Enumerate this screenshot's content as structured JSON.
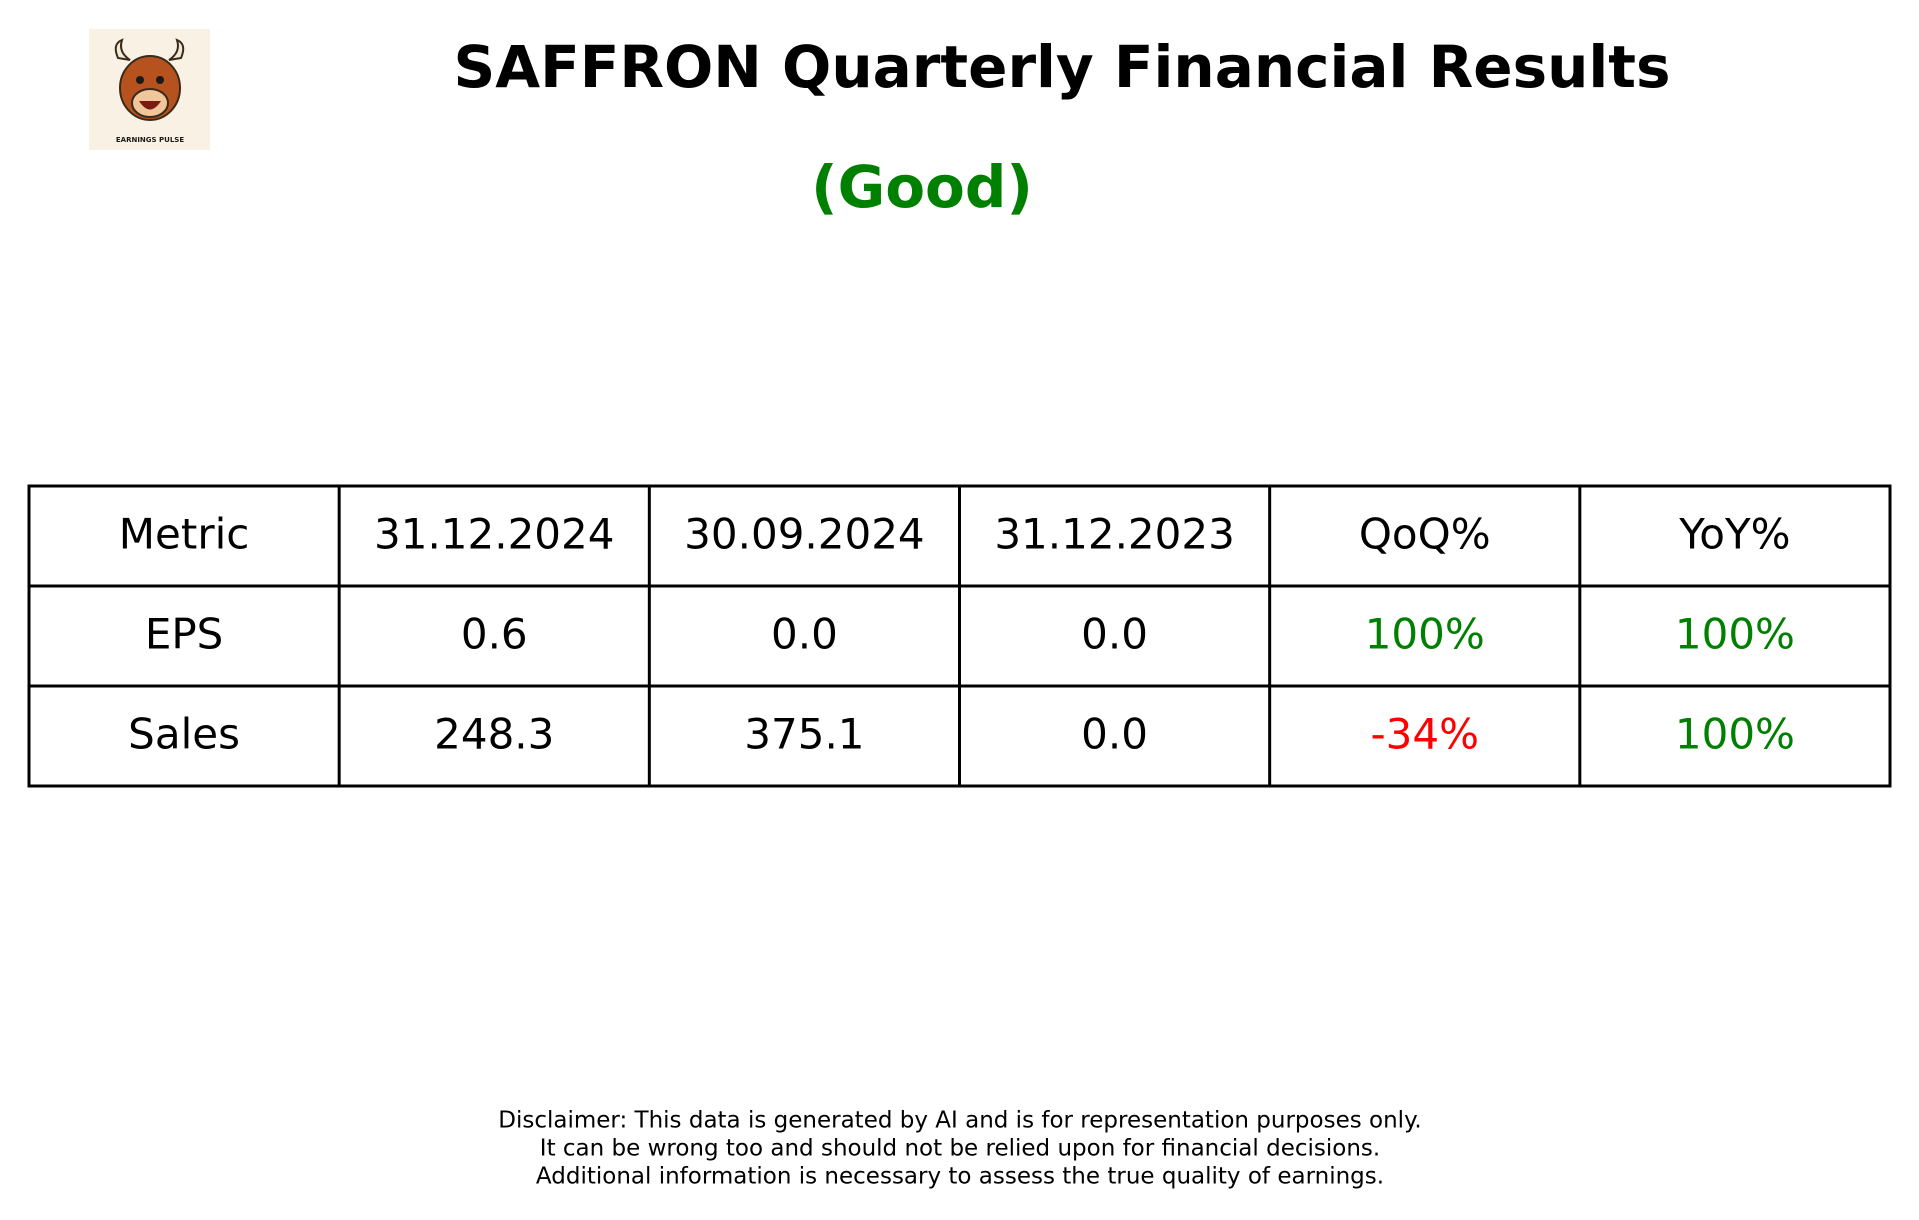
{
  "header": {
    "title": "SAFFRON Quarterly Financial Results",
    "rating": "(Good)",
    "rating_color": "#008000",
    "logo_text": "EARNINGS PULSE"
  },
  "table": {
    "columns": [
      "Metric",
      "31.12.2024",
      "30.09.2024",
      "31.12.2023",
      "QoQ%",
      "YoY%"
    ],
    "rows": [
      [
        "EPS",
        "0.6",
        "0.0",
        "0.0",
        "100%",
        "100%"
      ],
      [
        "Sales",
        "248.3",
        "375.1",
        "0.0",
        "-34%",
        "100%"
      ]
    ],
    "cell_colors": [
      [
        "#000000",
        "#000000",
        "#000000",
        "#000000",
        "#008000",
        "#008000"
      ],
      [
        "#000000",
        "#000000",
        "#000000",
        "#000000",
        "#ff0000",
        "#008000"
      ]
    ]
  },
  "disclaimer": [
    "Disclaimer: This data is generated by AI and is for representation purposes only.",
    "It can be wrong too and should not be relied upon for financial decisions.",
    "Additional information is necessary to assess the true quality of earnings."
  ]
}
